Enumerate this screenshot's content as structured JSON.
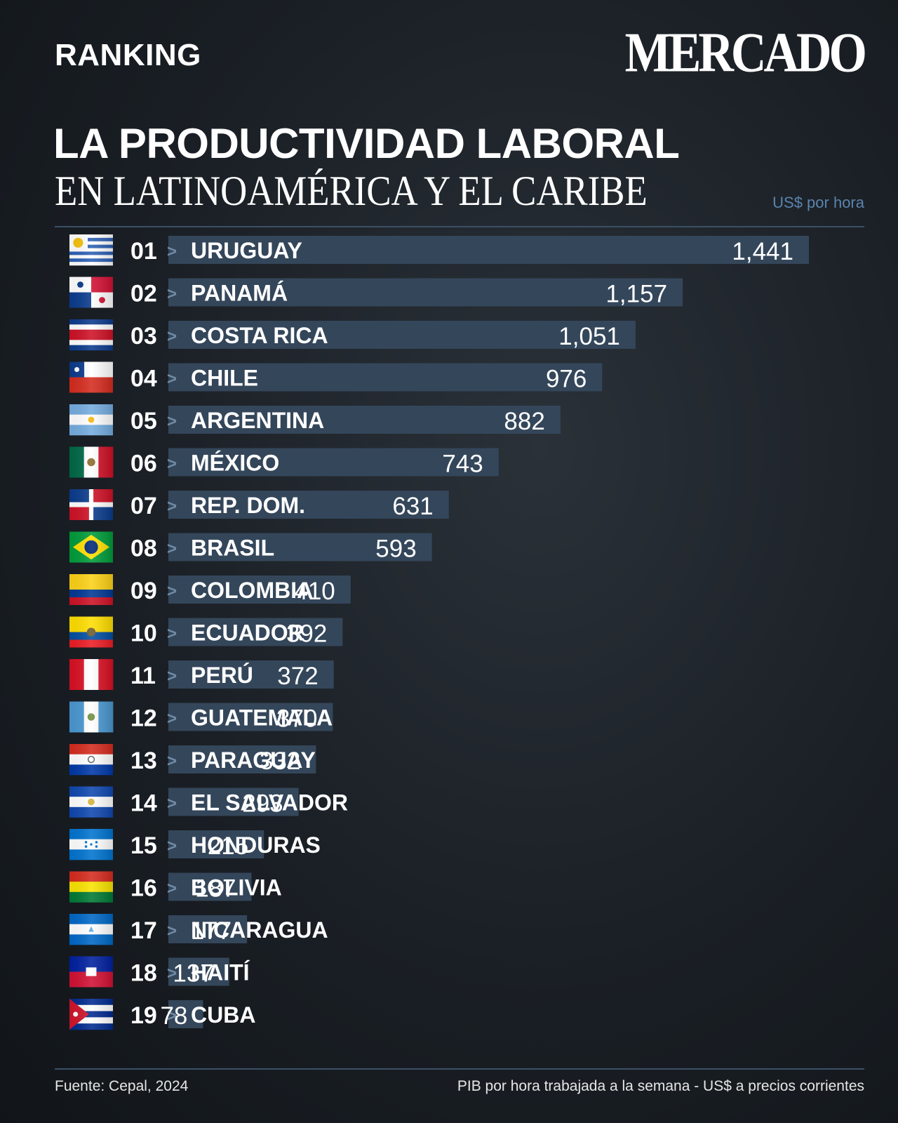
{
  "header": {
    "section_label": "RANKING",
    "brand": "MERCADO",
    "title_line1": "LA PRODUCTIVIDAD LABORAL",
    "title_line2": "EN LATINOAMÉRICA Y EL CARIBE",
    "unit": "US$ por hora"
  },
  "footer": {
    "source": "Fuente: Cepal, 2024",
    "note": "PIB por hora trabajada a la semana - US$ a precios corrientes"
  },
  "colors": {
    "bar": "#34465a",
    "text": "#ffffff",
    "arrow": "#6f8aa3"
  },
  "chart_data": {
    "type": "bar",
    "orientation": "horizontal",
    "title": "LA PRODUCTIVIDAD LABORAL EN LATINOAMÉRICA Y EL CARIBE",
    "unit": "US$ por hora",
    "separator": ">",
    "ranks": [
      "01",
      "02",
      "03",
      "04",
      "05",
      "06",
      "07",
      "08",
      "09",
      "10",
      "11",
      "12",
      "13",
      "14",
      "15",
      "16",
      "17",
      "18",
      "19"
    ],
    "categories": [
      "URUGUAY",
      "PANAMÁ",
      "COSTA RICA",
      "CHILE",
      "ARGENTINA",
      "MÉXICO",
      "REP. DOM.",
      "BRASIL",
      "COLOMBIA",
      "ECUADOR",
      "PERÚ",
      "GUATEMALA",
      "PARAGUAY",
      "EL SALVADOR",
      "HONDURAS",
      "BOLIVIA",
      "NICARAGUA",
      "HAITÍ",
      "CUBA"
    ],
    "values": [
      14.41,
      11.57,
      10.51,
      9.76,
      8.82,
      7.43,
      6.31,
      5.93,
      4.1,
      3.92,
      3.72,
      3.7,
      3.32,
      2.93,
      2.15,
      1.87,
      1.77,
      1.37,
      0.78
    ],
    "value_labels": [
      "1,441",
      "1,157",
      "1,051",
      "976",
      "882",
      "743",
      "631",
      "593",
      "410",
      "392",
      "372",
      "370",
      "332",
      "293",
      "215",
      "187",
      "177",
      "137",
      "78"
    ],
    "flags": [
      "uruguay-flag-icon",
      "panama-flag-icon",
      "costa-rica-flag-icon",
      "chile-flag-icon",
      "argentina-flag-icon",
      "mexico-flag-icon",
      "dominican-republic-flag-icon",
      "brazil-flag-icon",
      "colombia-flag-icon",
      "ecuador-flag-icon",
      "peru-flag-icon",
      "guatemala-flag-icon",
      "paraguay-flag-icon",
      "el-salvador-flag-icon",
      "honduras-flag-icon",
      "bolivia-flag-icon",
      "nicaragua-flag-icon",
      "haiti-flag-icon",
      "cuba-flag-icon"
    ],
    "grid": false,
    "legend": "none"
  }
}
